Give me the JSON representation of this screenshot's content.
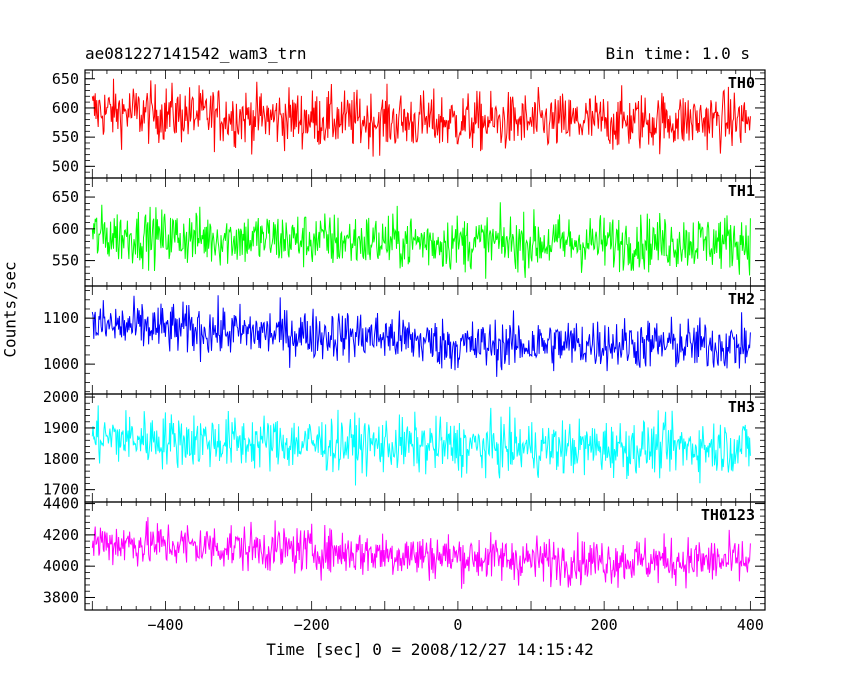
{
  "header": {
    "title": "ae081227141542_wam3_trn",
    "bin_time": "Bin time: 1.0 s"
  },
  "axis": {
    "ylabel": "Counts/sec",
    "xlabel": "Time [sec] 0 = 2008/12/27 14:15:42"
  },
  "chart_data": {
    "type": "line",
    "title": "ae081227141542_wam3_trn",
    "xlabel": "Time [sec] 0 = 2008/12/27 14:15:42",
    "ylabel": "Counts/sec",
    "xlim": [
      -510,
      420
    ],
    "xticks": [
      -400,
      -200,
      0,
      200,
      400
    ],
    "x_start": -500,
    "x_end": 400,
    "bin": 1.0,
    "grid": false,
    "panels": [
      {
        "name": "TH0",
        "color": "#ff0000",
        "ylim": [
          480,
          665
        ],
        "yticks": [
          500,
          550,
          600,
          650
        ],
        "trend": [
          [
            -500,
            595
          ],
          [
            -300,
            585
          ],
          [
            -100,
            578
          ],
          [
            100,
            575
          ],
          [
            400,
            580
          ]
        ],
        "noise": 25
      },
      {
        "name": "TH1",
        "color": "#00ff00",
        "ylim": [
          510,
          680
        ],
        "yticks": [
          550,
          600,
          650
        ],
        "trend": [
          [
            -500,
            590
          ],
          [
            -300,
            585
          ],
          [
            -100,
            580
          ],
          [
            100,
            578
          ],
          [
            400,
            580
          ]
        ],
        "noise": 22
      },
      {
        "name": "TH2",
        "color": "#0000ff",
        "ylim": [
          935,
          1170
        ],
        "yticks": [
          1000,
          1100
        ],
        "trend": [
          [
            -500,
            1085
          ],
          [
            -300,
            1070
          ],
          [
            -100,
            1060
          ],
          [
            0,
            1040
          ],
          [
            200,
            1045
          ],
          [
            400,
            1040
          ]
        ],
        "noise": 28
      },
      {
        "name": "TH3",
        "color": "#00ffff",
        "ylim": [
          1660,
          2010
        ],
        "yticks": [
          1700,
          1800,
          1900,
          2000
        ],
        "trend": [
          [
            -500,
            1870
          ],
          [
            -300,
            1855
          ],
          [
            -100,
            1845
          ],
          [
            100,
            1835
          ],
          [
            400,
            1840
          ]
        ],
        "noise": 45
      },
      {
        "name": "TH0123",
        "color": "#ff00ff",
        "ylim": [
          3720,
          4410
        ],
        "yticks": [
          3800,
          4000,
          4200,
          4400
        ],
        "trend": [
          [
            -500,
            4155
          ],
          [
            -300,
            4120
          ],
          [
            -100,
            4080
          ],
          [
            100,
            4040
          ],
          [
            400,
            4030
          ]
        ],
        "noise": 75
      }
    ]
  }
}
